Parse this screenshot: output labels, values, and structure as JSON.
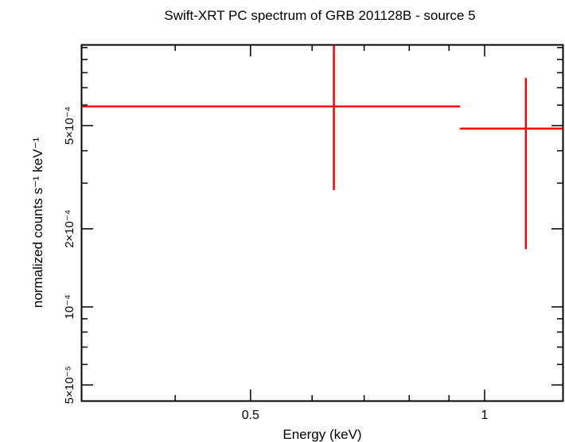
{
  "chart_data": {
    "type": "scatter",
    "title": "Swift-XRT PC spectrum of GRB 201128B - source 5",
    "xlabel": "Energy (keV)",
    "ylabel": "normalized counts s⁻¹ keV⁻¹",
    "x_scale": "log",
    "y_scale": "log",
    "xlim": [
      0.3035,
      1.26
    ],
    "ylim": [
      4.35e-05,
      0.00102
    ],
    "x_ticks": [
      {
        "value": 0.5,
        "label": "0.5"
      },
      {
        "value": 1,
        "label": "1"
      }
    ],
    "y_ticks": [
      {
        "value": 5e-05,
        "label": "5×10⁻⁵"
      },
      {
        "value": 0.0001,
        "label": "10⁻⁴"
      },
      {
        "value": 0.0002,
        "label": "2×10⁻⁴"
      },
      {
        "value": 0.0005,
        "label": "5×10⁻⁴"
      }
    ],
    "grid": false,
    "series": [
      {
        "color": "#ff0000",
        "points": [
          {
            "x": 0.64,
            "y": 0.000593,
            "x_low": 0.3035,
            "x_high": 0.93,
            "y_low": 0.000282,
            "y_high": 0.00102
          },
          {
            "x": 1.13,
            "y": 0.000487,
            "x_low": 0.93,
            "y_high": 0.000763,
            "x_high": 1.26,
            "y_low": 0.000167
          }
        ]
      }
    ]
  }
}
